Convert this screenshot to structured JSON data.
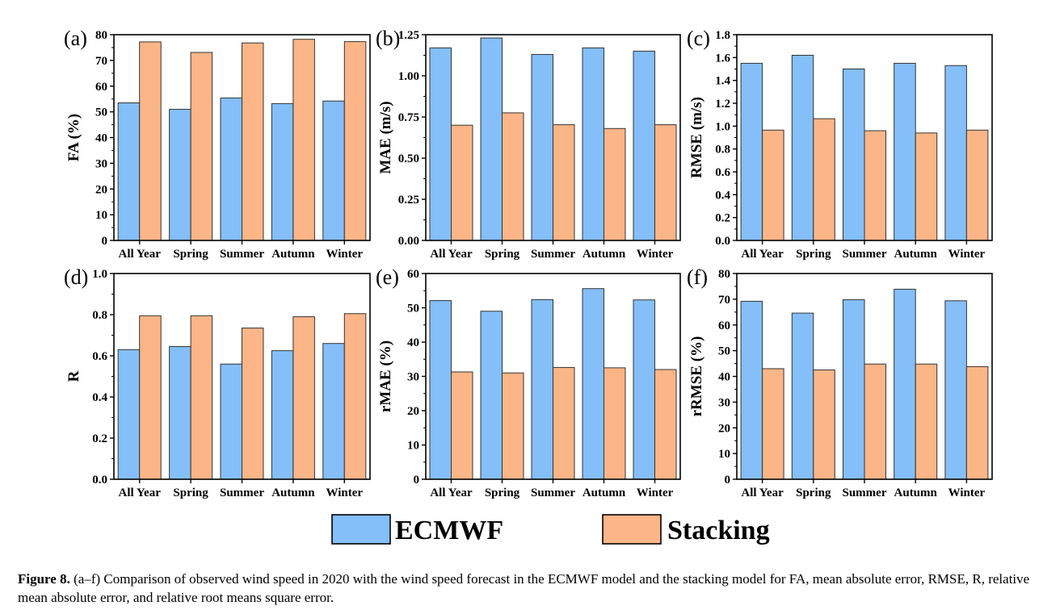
{
  "figure": {
    "caption_label": "Figure 8.",
    "caption_text": " (a–f) Comparison of observed wind speed in 2020 with the wind speed forecast in the ECMWF model and the stacking model for FA, mean absolute error, RMSE, R, relative mean absolute error, and relative root means square error."
  },
  "legend": [
    {
      "name": "ECMWF",
      "color": "#84bff9"
    },
    {
      "name": "Stacking",
      "color": "#fcb587"
    }
  ],
  "chart_data": [
    {
      "panel": "(a)",
      "type": "bar",
      "ylabel": "FA (%)",
      "categories": [
        "All Year",
        "Spring",
        "Summer",
        "Autumn",
        "Winter"
      ],
      "ylim": [
        0,
        80
      ],
      "yticks": [
        0,
        10,
        20,
        30,
        40,
        50,
        60,
        70,
        80
      ],
      "ytick_labels": [
        "0",
        "10",
        "20",
        "30",
        "40",
        "50",
        "60",
        "70",
        "80"
      ],
      "series": [
        {
          "name": "ECMWF",
          "values": [
            53.5,
            51.0,
            55.4,
            53.2,
            54.2
          ]
        },
        {
          "name": "Stacking",
          "values": [
            77.2,
            73.1,
            76.8,
            78.2,
            77.3
          ]
        }
      ]
    },
    {
      "panel": "(b)",
      "type": "bar",
      "ylabel": "MAE (m/s)",
      "categories": [
        "All Year",
        "Spring",
        "Summer",
        "Autumn",
        "Winter"
      ],
      "ylim": [
        0,
        1.25
      ],
      "yticks": [
        0,
        0.25,
        0.5,
        0.75,
        1.0,
        1.25
      ],
      "ytick_labels": [
        "0.00",
        "0.25",
        "0.50",
        "0.75",
        "1.00",
        "1.25"
      ],
      "series": [
        {
          "name": "ECMWF",
          "values": [
            1.17,
            1.23,
            1.13,
            1.17,
            1.15
          ]
        },
        {
          "name": "Stacking",
          "values": [
            0.7,
            0.775,
            0.703,
            0.68,
            0.703
          ]
        }
      ]
    },
    {
      "panel": "(c)",
      "type": "bar",
      "ylabel": "RMSE (m/s)",
      "categories": [
        "All Year",
        "Spring",
        "Summer",
        "Autumn",
        "Winter"
      ],
      "ylim": [
        0,
        1.8
      ],
      "yticks": [
        0,
        0.2,
        0.4,
        0.6,
        0.8,
        1.0,
        1.2,
        1.4,
        1.6,
        1.8
      ],
      "ytick_labels": [
        "0.0",
        "0.2",
        "0.4",
        "0.6",
        "0.8",
        "1.0",
        "1.2",
        "1.4",
        "1.6",
        "1.8"
      ],
      "series": [
        {
          "name": "ECMWF",
          "values": [
            1.55,
            1.62,
            1.5,
            1.55,
            1.53
          ]
        },
        {
          "name": "Stacking",
          "values": [
            0.965,
            1.065,
            0.96,
            0.94,
            0.965
          ]
        }
      ]
    },
    {
      "panel": "(d)",
      "type": "bar",
      "ylabel": "R",
      "categories": [
        "All Year",
        "Spring",
        "Summer",
        "Autumn",
        "Winter"
      ],
      "ylim": [
        0,
        1.0
      ],
      "yticks": [
        0,
        0.2,
        0.4,
        0.6,
        0.8,
        1.0
      ],
      "ytick_labels": [
        "0.0",
        "0.2",
        "0.4",
        "0.6",
        "0.8",
        "1.0"
      ],
      "series": [
        {
          "name": "ECMWF",
          "values": [
            0.63,
            0.645,
            0.56,
            0.625,
            0.66
          ]
        },
        {
          "name": "Stacking",
          "values": [
            0.795,
            0.795,
            0.735,
            0.79,
            0.805
          ]
        }
      ]
    },
    {
      "panel": "(e)",
      "type": "bar",
      "ylabel": "rMAE (%)",
      "categories": [
        "All Year",
        "Spring",
        "Summer",
        "Autumn",
        "Winter"
      ],
      "ylim": [
        0,
        60
      ],
      "yticks": [
        0,
        10,
        20,
        30,
        40,
        50,
        60
      ],
      "ytick_labels": [
        "0",
        "10",
        "20",
        "30",
        "40",
        "50",
        "60"
      ],
      "series": [
        {
          "name": "ECMWF",
          "values": [
            52.1,
            49.0,
            52.4,
            55.6,
            52.3
          ]
        },
        {
          "name": "Stacking",
          "values": [
            31.3,
            31.0,
            32.6,
            32.5,
            32.0
          ]
        }
      ]
    },
    {
      "panel": "(f)",
      "type": "bar",
      "ylabel": "rRMSE (%)",
      "categories": [
        "All Year",
        "Spring",
        "Summer",
        "Autumn",
        "Winter"
      ],
      "ylim": [
        0,
        80
      ],
      "yticks": [
        0,
        10,
        20,
        30,
        40,
        50,
        60,
        70,
        80
      ],
      "ytick_labels": [
        "0",
        "10",
        "20",
        "30",
        "40",
        "50",
        "60",
        "70",
        "80"
      ],
      "series": [
        {
          "name": "ECMWF",
          "values": [
            69.2,
            64.6,
            69.8,
            73.9,
            69.4
          ]
        },
        {
          "name": "Stacking",
          "values": [
            43.0,
            42.5,
            44.8,
            44.8,
            43.8
          ]
        }
      ]
    }
  ]
}
